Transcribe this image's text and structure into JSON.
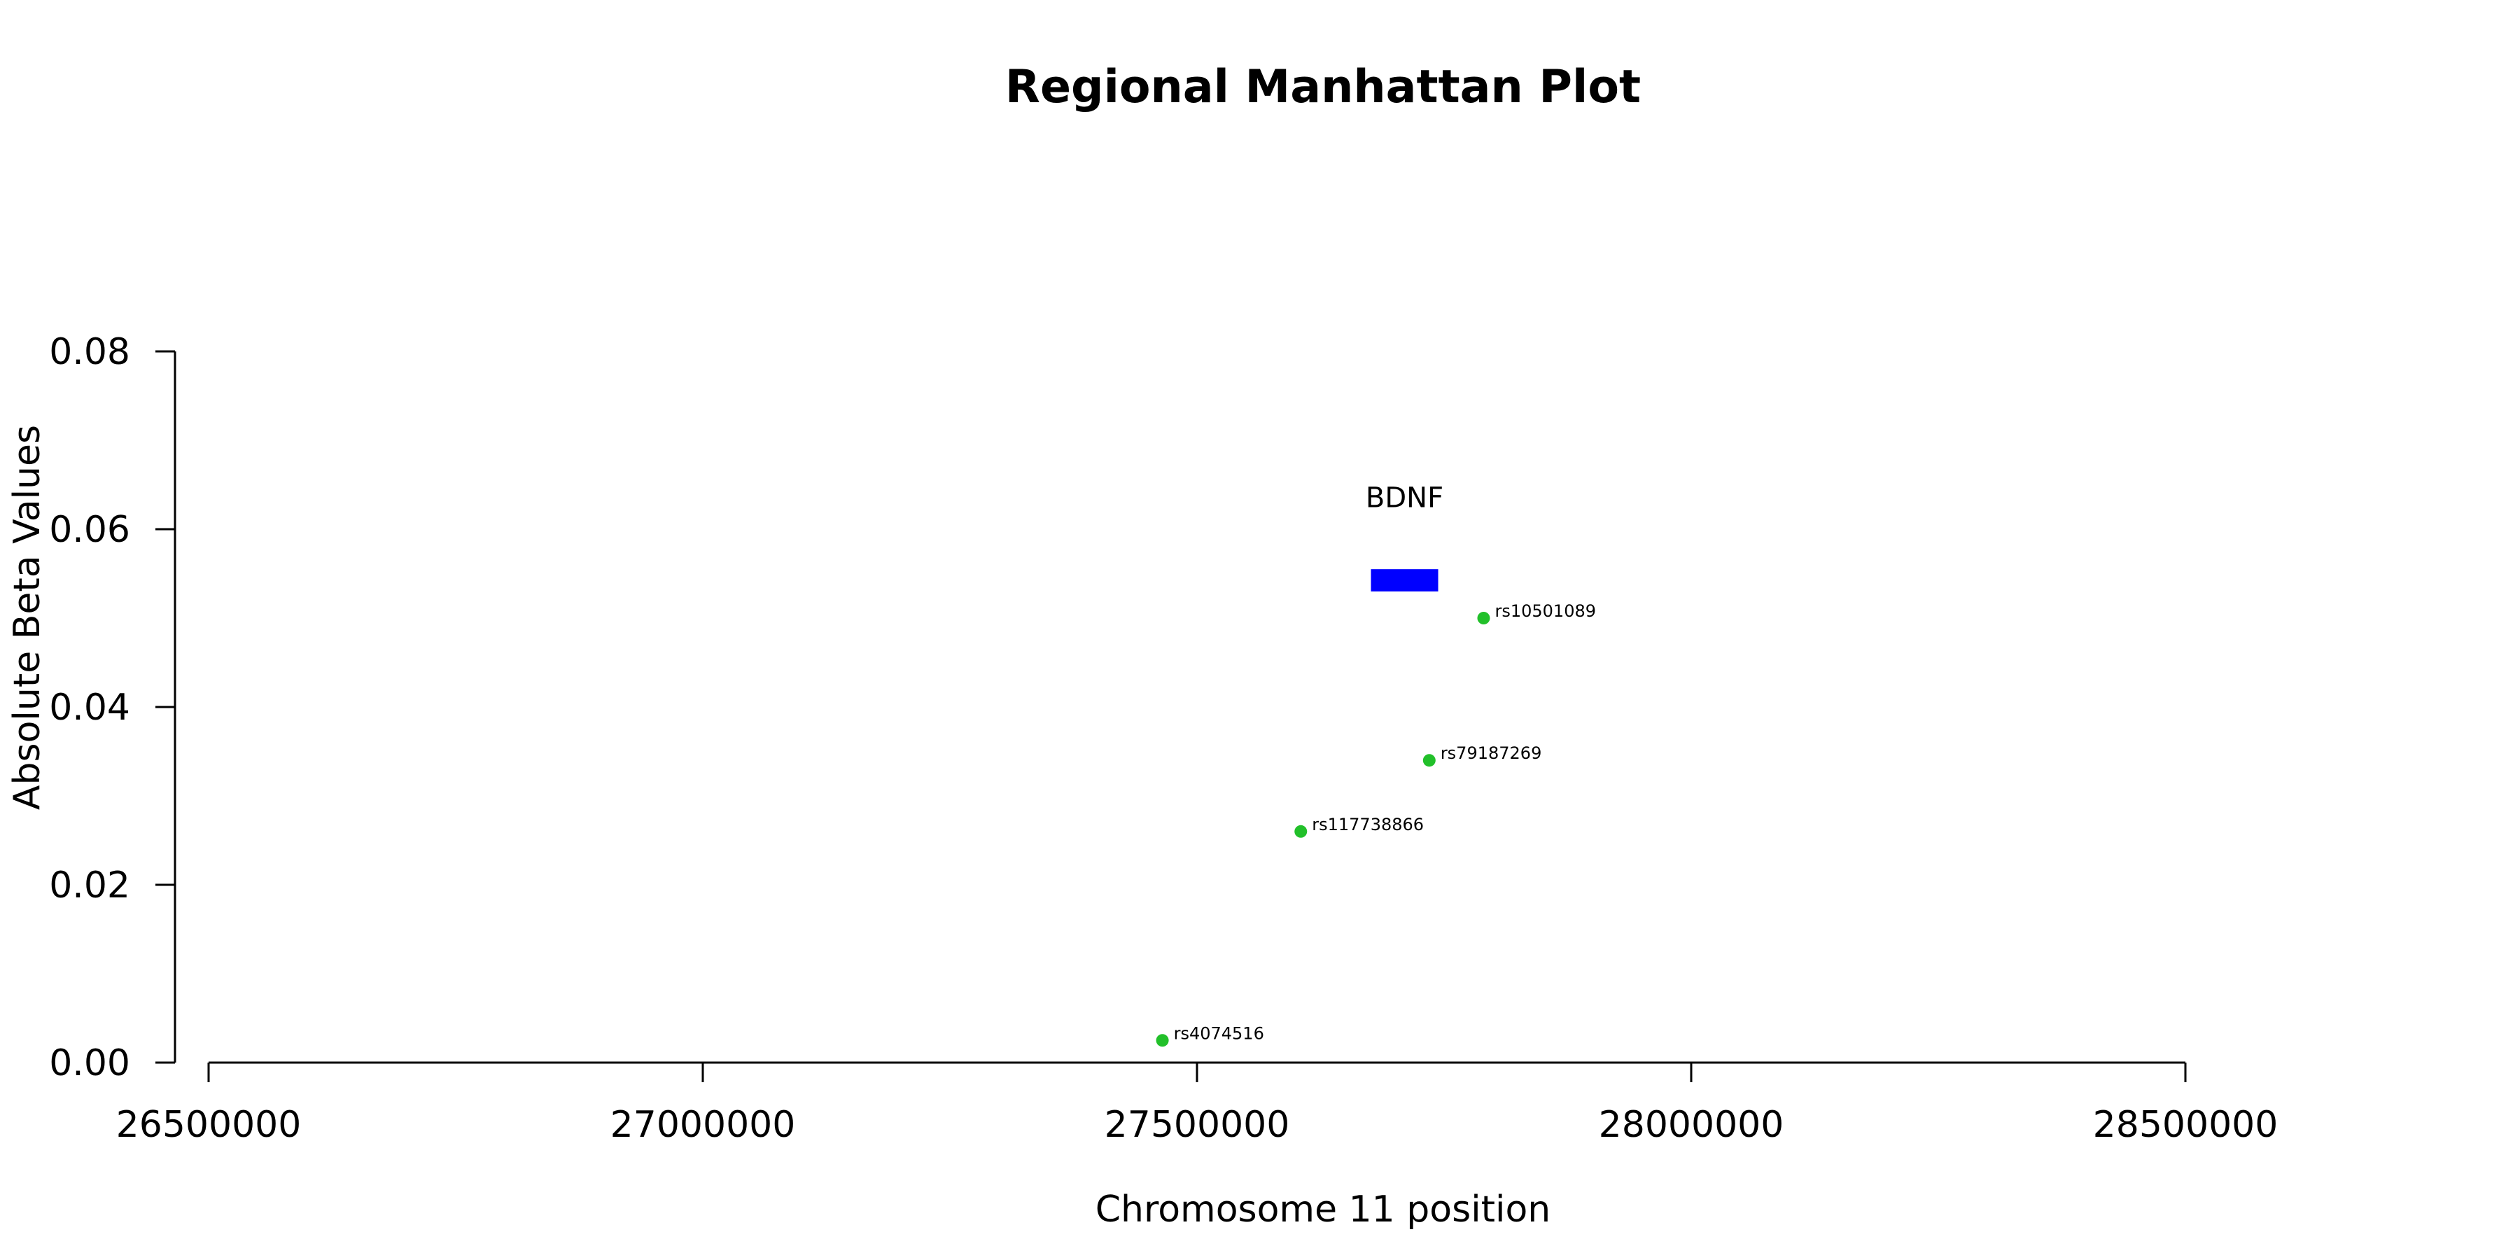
{
  "chart_data": {
    "type": "scatter",
    "title": "Regional Manhattan Plot",
    "xlabel": "Chromosome 11 position",
    "ylabel": "Absolute Beta Values",
    "xlim": [
      26500000,
      28500000
    ],
    "ylim": [
      0,
      0.08
    ],
    "x_ticks": [
      26500000,
      27000000,
      27500000,
      28000000,
      28500000
    ],
    "x_tick_labels": [
      "26500000",
      "27000000",
      "27500000",
      "28000000",
      "28500000"
    ],
    "y_ticks": [
      0,
      0.02,
      0.04,
      0.06,
      0.08
    ],
    "y_tick_labels": [
      "0.00",
      "0.02",
      "0.04",
      "0.06",
      "0.08"
    ],
    "grid": false,
    "point_color": "#22C02A",
    "points": [
      {
        "label": "rs4074516",
        "x": 27465000,
        "y": 0.0025
      },
      {
        "label": "rs117738866",
        "x": 27605000,
        "y": 0.026
      },
      {
        "label": "rs79187269",
        "x": 27735000,
        "y": 0.034
      },
      {
        "label": "rs10501089",
        "x": 27790000,
        "y": 0.05
      }
    ],
    "genes": [
      {
        "name": "BDNF",
        "start": 27676000,
        "end": 27744000,
        "y_low": 0.053,
        "y_high": 0.0555,
        "color": "#0000FF"
      }
    ]
  }
}
